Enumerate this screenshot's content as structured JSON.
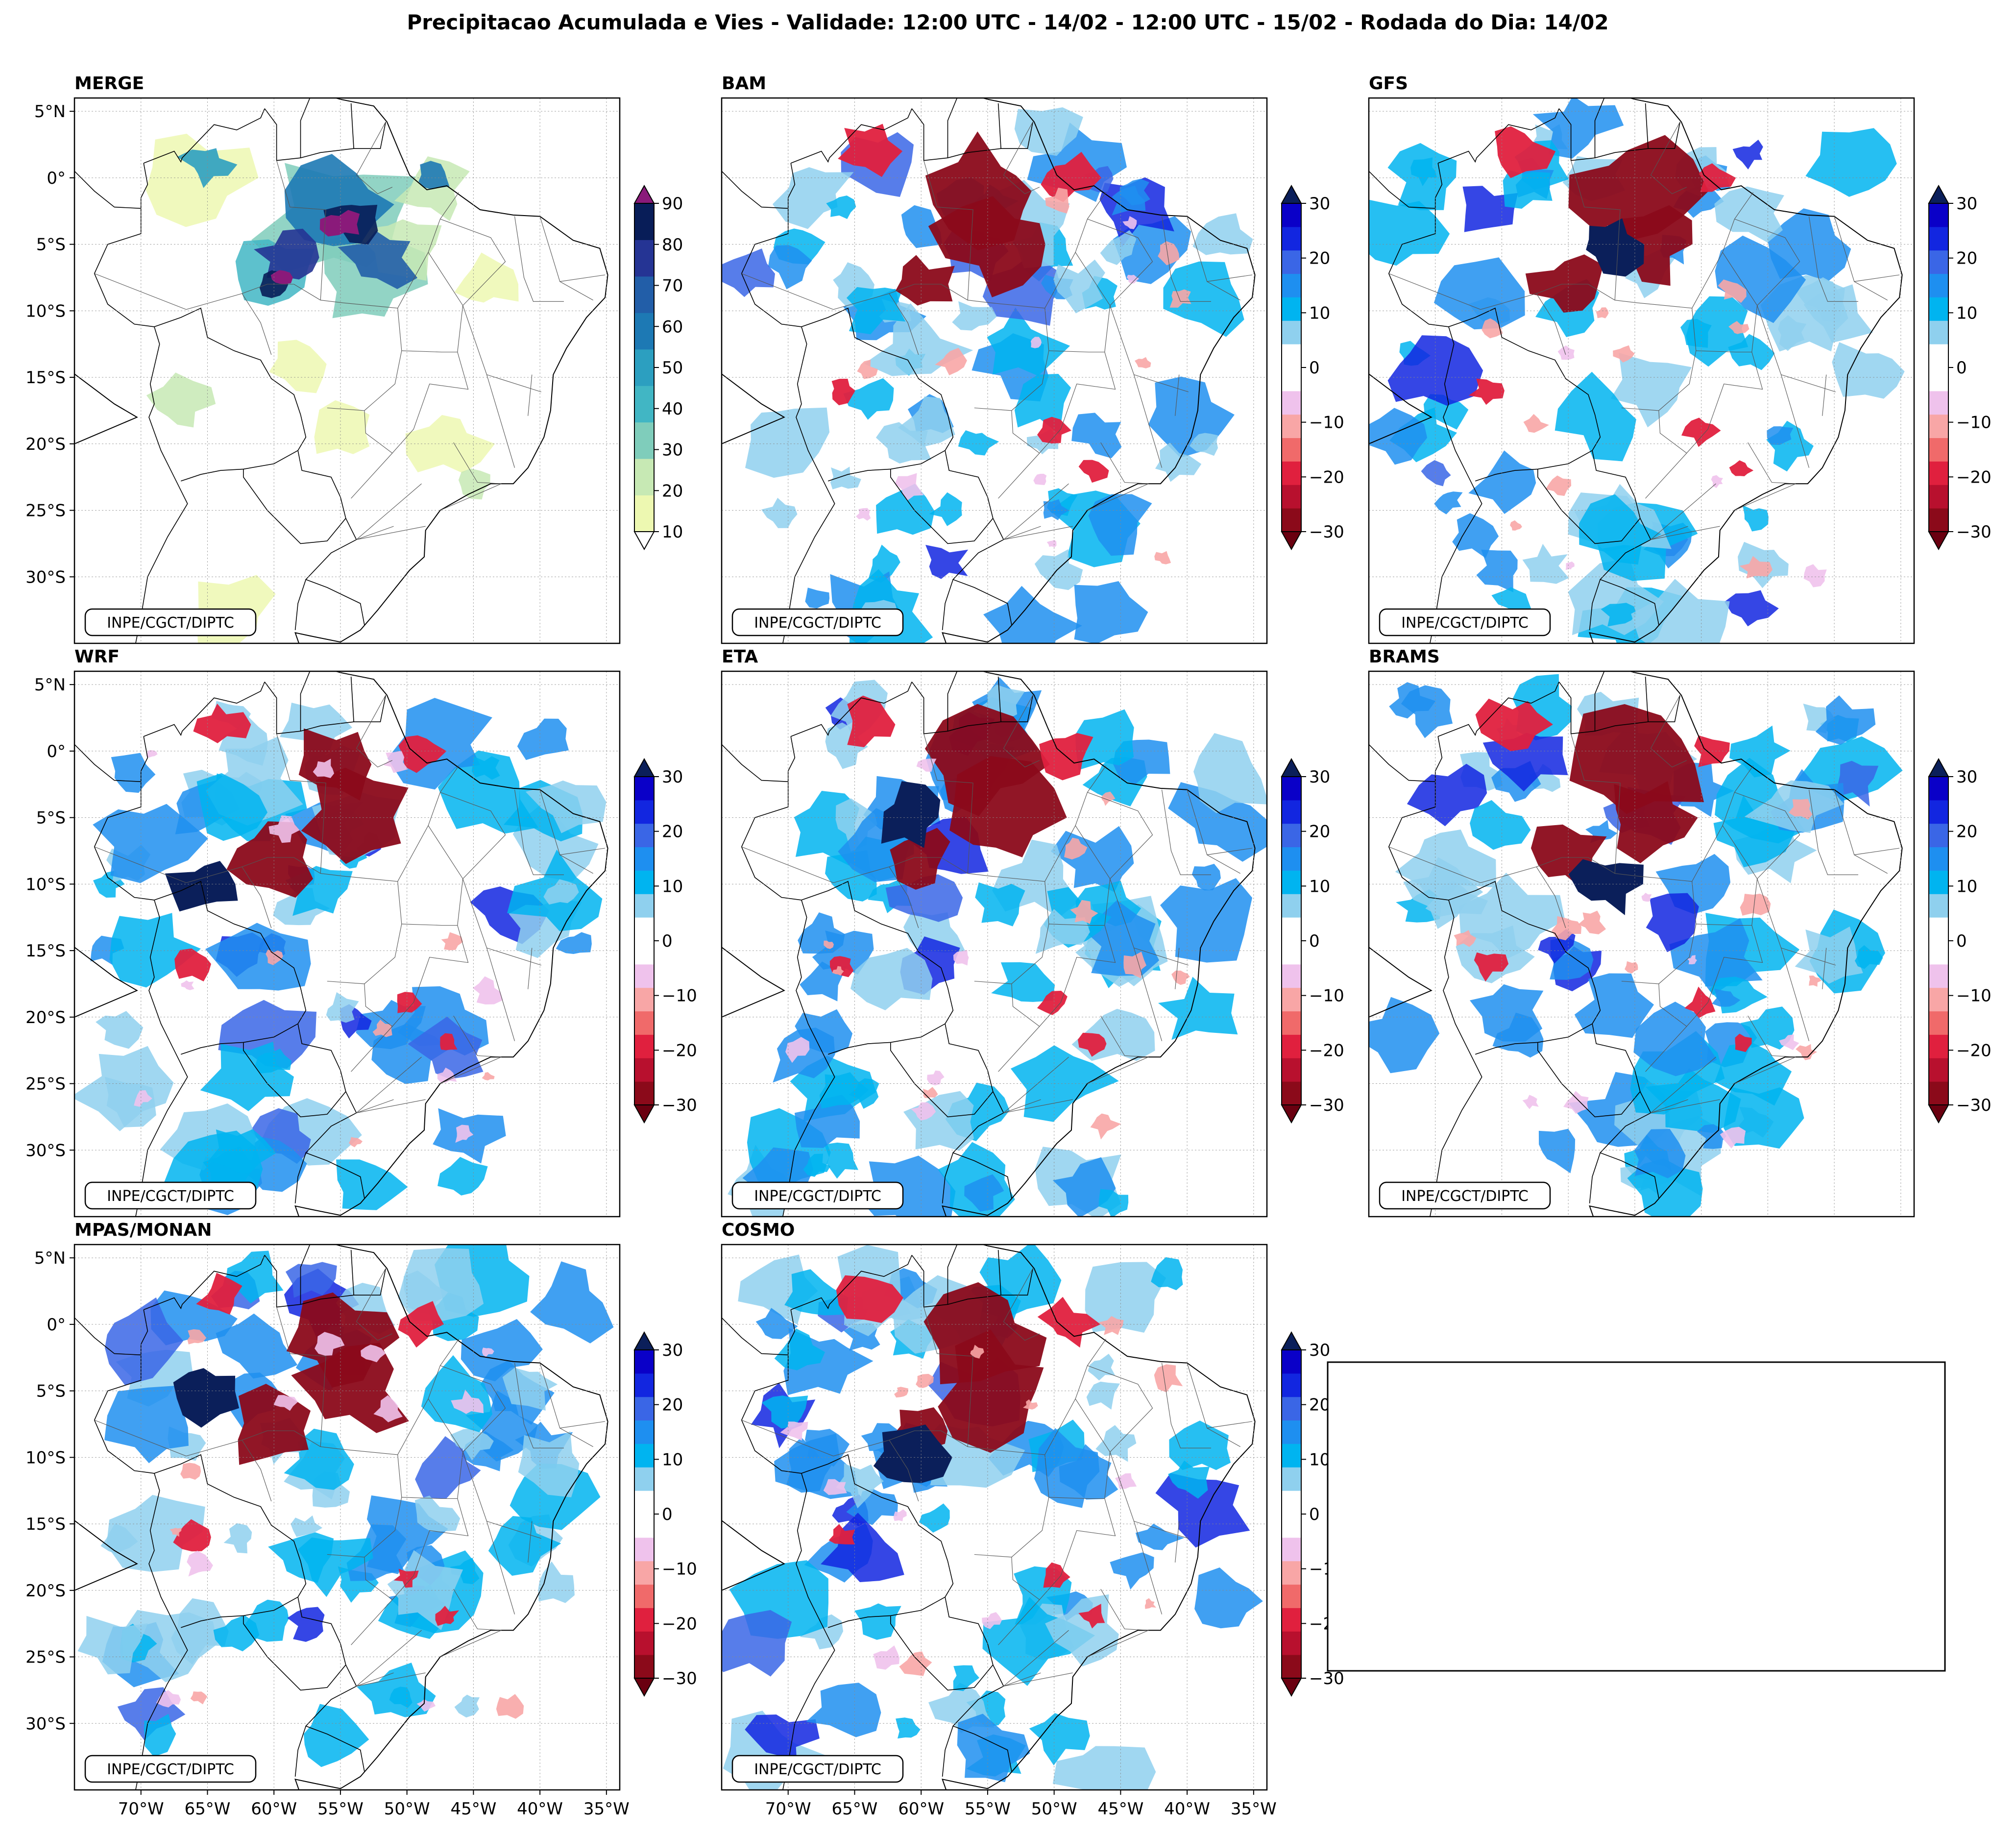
{
  "title": "Precipitacao Acumulada e Vies - Validade: 12:00 UTC - 14/02 - 12:00 UTC - 15/02 - Rodada do Dia: 14/02",
  "credit": "INPE/CGCT/DIPTC",
  "lat_labels": [
    "5°N",
    "0°",
    "5°S",
    "10°S",
    "15°S",
    "20°S",
    "25°S",
    "30°S"
  ],
  "lon_labels": [
    "70°W",
    "65°W",
    "60°W",
    "55°W",
    "50°W",
    "45°W",
    "40°W",
    "35°W"
  ],
  "panels": [
    {
      "title": "MERGE",
      "scale": "precip"
    },
    {
      "title": "BAM",
      "scale": "bias"
    },
    {
      "title": "GFS",
      "scale": "bias"
    },
    {
      "title": "WRF",
      "scale": "bias"
    },
    {
      "title": "ETA",
      "scale": "bias"
    },
    {
      "title": "BRAMS",
      "scale": "bias"
    },
    {
      "title": "MPAS/MONAN",
      "scale": "bias"
    },
    {
      "title": "COSMO",
      "scale": "bias"
    }
  ],
  "colorbars": {
    "precip": {
      "ticks": [
        "90",
        "80",
        "70",
        "60",
        "50",
        "40",
        "30",
        "20",
        "10"
      ],
      "colors": [
        "#edf8b1",
        "#c7e9b4",
        "#7fcdbb",
        "#41b6c4",
        "#2c9fc0",
        "#1d79b4",
        "#225ea8",
        "#253494",
        "#081d58"
      ],
      "over": "#8a1a7a",
      "under": "#ffffff"
    },
    "bias": {
      "ticks": [
        "30",
        "20",
        "10",
        "0",
        "−10",
        "−20",
        "−30"
      ],
      "colors": [
        "#8b0a1a",
        "#b8102e",
        "#e0203e",
        "#f06a6a",
        "#f8a6a6",
        "#efc2ec",
        "#ffffff",
        "#ffffff",
        "#8fd0ee",
        "#00b4f0",
        "#1e8ff0",
        "#3a66e6",
        "#1226e0",
        "#0a00c8"
      ],
      "over": "#0b1f5a",
      "under": "#6a0010"
    }
  },
  "chart_data": {
    "type": "heatmap",
    "title": "Precipitacao Acumulada e Vies - Validade: 12:00 UTC - 14/02 - 12:00 UTC - 15/02 - Rodada do Dia: 14/02",
    "x_range_deg": [
      -75,
      -34
    ],
    "y_range_deg": [
      -35,
      6
    ],
    "x_ticks": [
      -70,
      -65,
      -60,
      -55,
      -50,
      -45,
      -40,
      -35
    ],
    "y_ticks": [
      5,
      0,
      -5,
      -10,
      -15,
      -20,
      -25,
      -30
    ],
    "merge_precip_levels_mm": [
      10,
      20,
      30,
      40,
      50,
      60,
      70,
      80,
      90
    ],
    "bias_levels_mm": [
      -30,
      -25,
      -20,
      -15,
      -10,
      -5,
      0,
      5,
      10,
      15,
      20,
      25,
      30
    ],
    "panels": [
      "MERGE",
      "BAM",
      "GFS",
      "WRF",
      "ETA",
      "BRAMS",
      "MPAS/MONAN",
      "COSMO"
    ]
  }
}
